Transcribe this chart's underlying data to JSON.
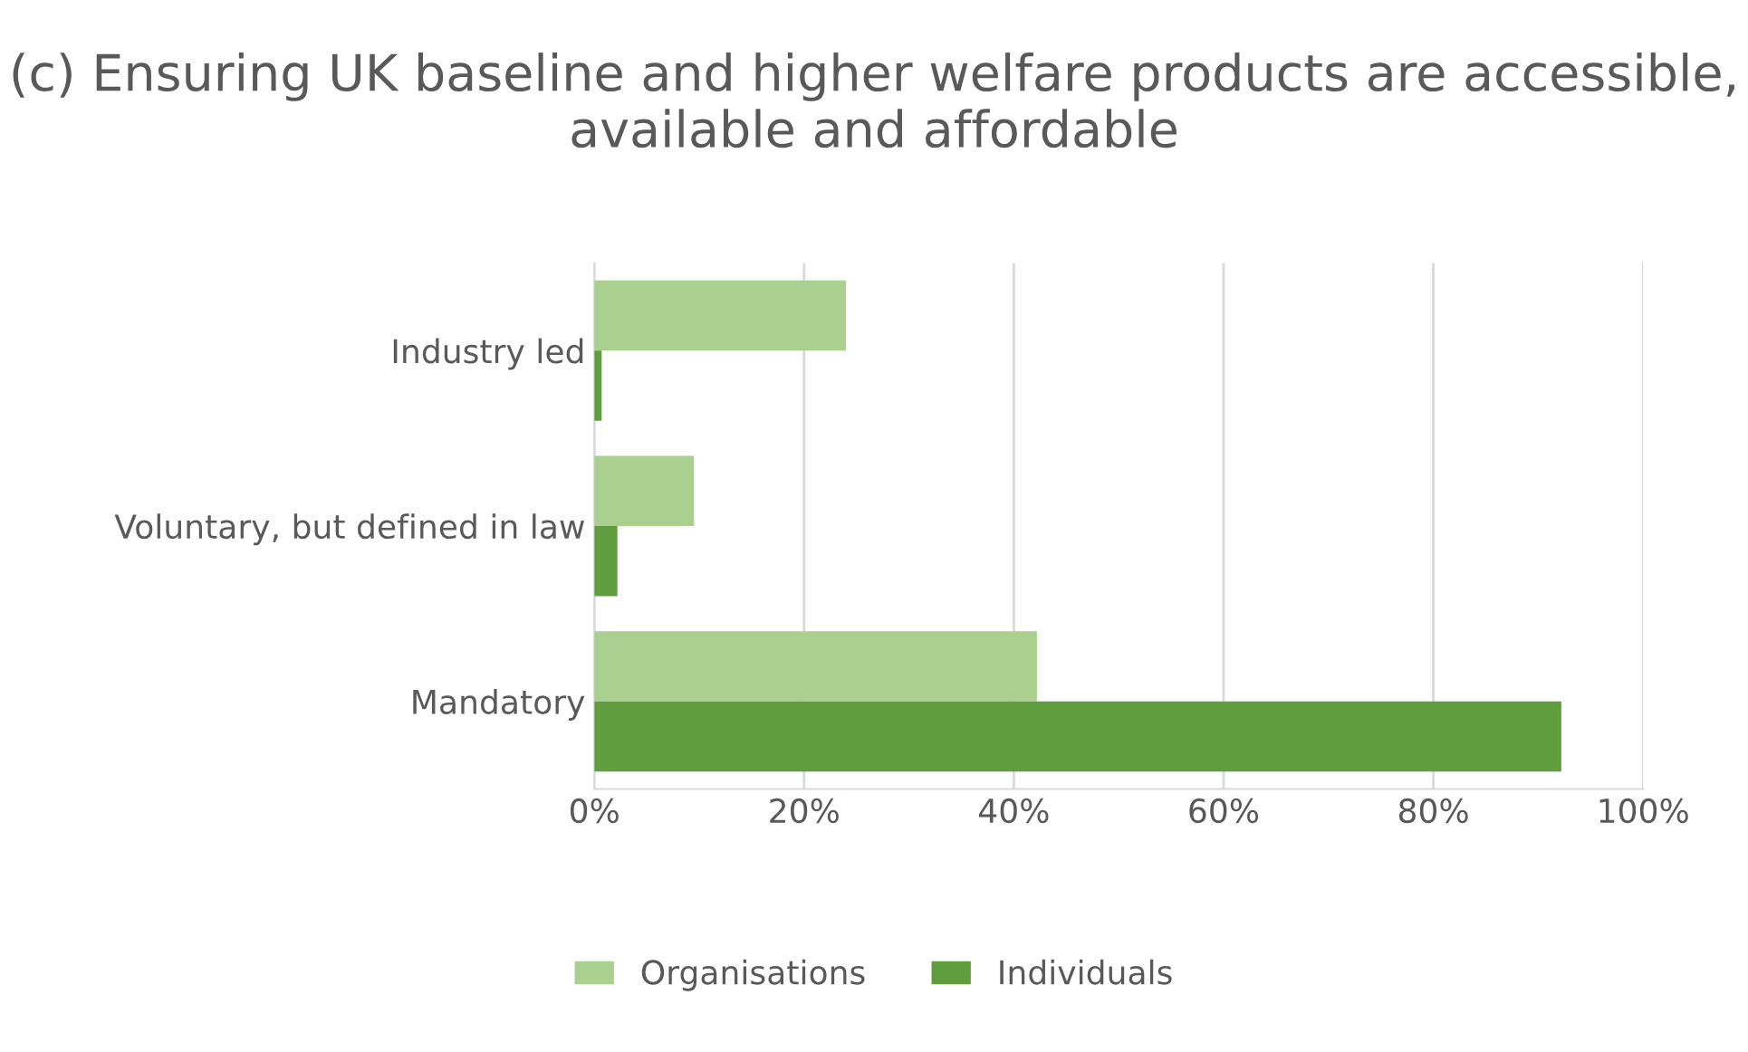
{
  "chart_data": {
    "type": "bar",
    "orientation": "horizontal",
    "title": "(c) Ensuring UK baseline and higher welfare products are accessible, available and affordable",
    "categories": [
      "Industry led",
      "Voluntary, but defined in law",
      "Mandatory"
    ],
    "series": [
      {
        "name": "Organisations",
        "color": "#a9d08e",
        "values": [
          24,
          9.5,
          42.2
        ]
      },
      {
        "name": "Individuals",
        "color": "#609d3f",
        "values": [
          0.7,
          2.2,
          92.2
        ]
      }
    ],
    "xlim": [
      0,
      100
    ],
    "xticks": [
      {
        "value": 0,
        "label": "0%"
      },
      {
        "value": 20,
        "label": "20%"
      },
      {
        "value": 40,
        "label": "40%"
      },
      {
        "value": 60,
        "label": "60%"
      },
      {
        "value": 80,
        "label": "80%"
      },
      {
        "value": 100,
        "label": "100%"
      }
    ],
    "grid": "x",
    "legend": "bottom"
  }
}
